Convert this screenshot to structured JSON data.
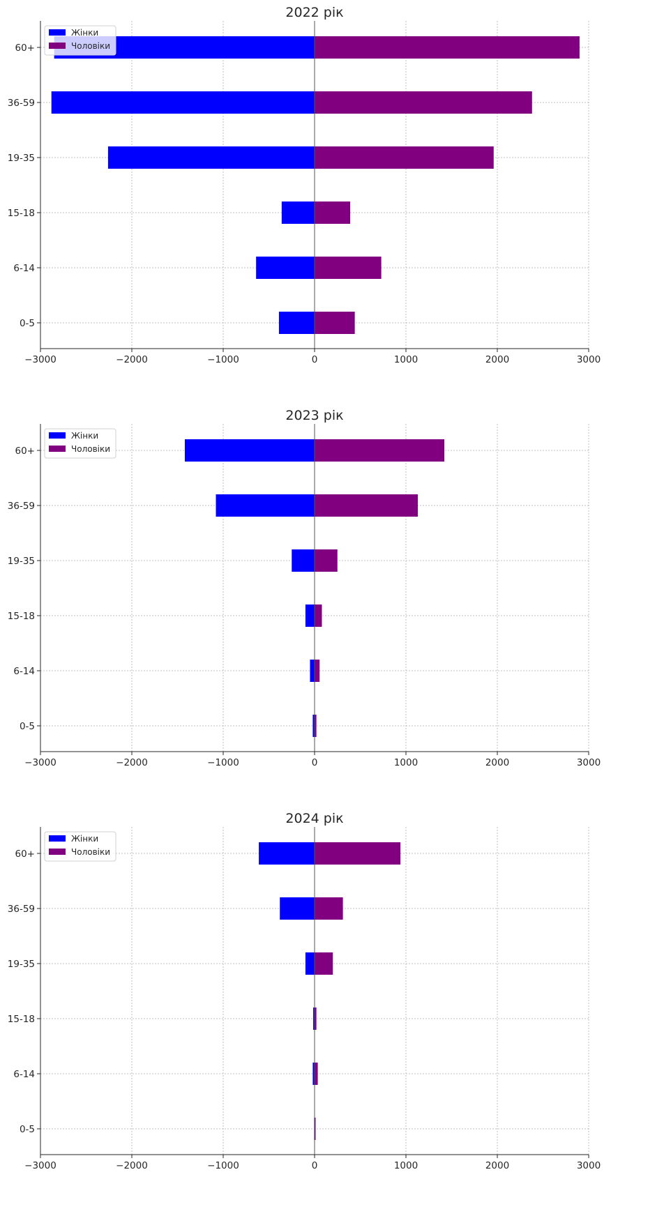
{
  "chart_data": [
    {
      "type": "bar",
      "orientation": "horizontal",
      "title": "2022 рік",
      "categories": [
        "0-5",
        "6-14",
        "15-18",
        "19-35",
        "36-59",
        "60+"
      ],
      "series": [
        {
          "name": "Жінки",
          "values": [
            -390,
            -640,
            -360,
            -2260,
            -2880,
            -2850
          ],
          "color": "#0000ff"
        },
        {
          "name": "Чоловіки",
          "values": [
            440,
            730,
            390,
            1960,
            2380,
            2900
          ],
          "color": "#800080"
        }
      ],
      "xlim": [
        -3000,
        3000
      ],
      "xticks": [
        "−3000",
        "−2000",
        "−1000",
        "0",
        "1000",
        "2000",
        "3000"
      ],
      "grid": true,
      "legend_position": "top-left"
    },
    {
      "type": "bar",
      "orientation": "horizontal",
      "title": "2023 рік",
      "categories": [
        "0-5",
        "6-14",
        "15-18",
        "19-35",
        "36-59",
        "60+"
      ],
      "series": [
        {
          "name": "Жінки",
          "values": [
            -20,
            -50,
            -100,
            -250,
            -1080,
            -1420
          ],
          "color": "#0000ff"
        },
        {
          "name": "Чоловіки",
          "values": [
            20,
            55,
            80,
            250,
            1130,
            1420
          ],
          "color": "#800080"
        }
      ],
      "xlim": [
        -3000,
        3000
      ],
      "xticks": [
        "−3000",
        "−2000",
        "−1000",
        "0",
        "1000",
        "2000",
        "3000"
      ],
      "grid": true,
      "legend_position": "top-left"
    },
    {
      "type": "bar",
      "orientation": "horizontal",
      "title": "2024 рік",
      "categories": [
        "0-5",
        "6-14",
        "15-18",
        "19-35",
        "36-59",
        "60+"
      ],
      "series": [
        {
          "name": "Жінки",
          "values": [
            -5,
            -20,
            -15,
            -100,
            -380,
            -610
          ],
          "color": "#0000ff"
        },
        {
          "name": "Чоловіки",
          "values": [
            5,
            35,
            20,
            200,
            310,
            940
          ],
          "color": "#800080"
        }
      ],
      "xlim": [
        -3000,
        3000
      ],
      "xticks": [
        "−3000",
        "−2000",
        "−1000",
        "0",
        "1000",
        "2000",
        "3000"
      ],
      "grid": true,
      "legend_position": "top-left"
    }
  ]
}
